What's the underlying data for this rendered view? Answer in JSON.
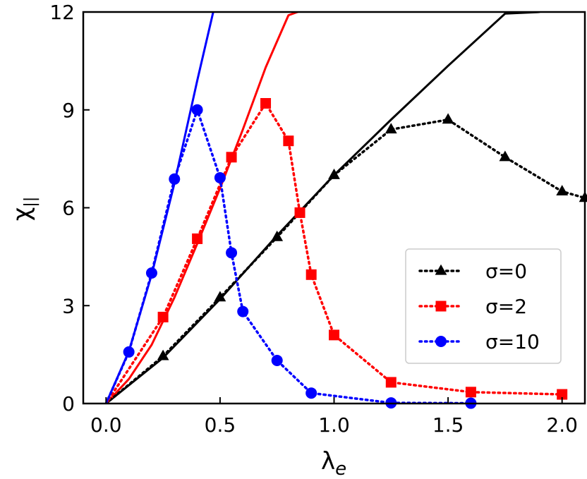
{
  "chart_data": {
    "type": "line",
    "title": "",
    "xlabel": "λ",
    "xlabel_sub": "e",
    "ylabel": "χ",
    "ylabel_sub": "||",
    "xlim": [
      -0.1,
      2.1
    ],
    "ylim": [
      0,
      12
    ],
    "x_ticks": [
      "0.0",
      "0.5",
      "1.0",
      "1.5",
      "2.0"
    ],
    "y_ticks": [
      "0",
      "3",
      "6",
      "9",
      "12"
    ],
    "grid": false,
    "legend_position": "center-right",
    "series": [
      {
        "name": "σ=0",
        "color": "#000000",
        "marker": "triangle",
        "line_style": "dotted",
        "x": [
          0.0,
          0.25,
          0.5,
          0.75,
          1.0,
          1.25,
          1.5,
          1.75,
          2.0,
          2.1
        ],
        "y": [
          0.0,
          1.45,
          3.25,
          5.1,
          7.0,
          8.4,
          8.7,
          7.55,
          6.5,
          6.3
        ]
      },
      {
        "name": "σ=2",
        "color": "#ff0000",
        "marker": "square",
        "line_style": "dotted",
        "x": [
          0.0,
          0.25,
          0.4,
          0.55,
          0.7,
          0.8,
          0.85,
          0.9,
          1.0,
          1.25,
          1.6,
          2.0
        ],
        "y": [
          0.0,
          2.65,
          5.05,
          7.55,
          9.2,
          8.05,
          5.85,
          3.95,
          2.1,
          0.65,
          0.35,
          0.28
        ]
      },
      {
        "name": "σ=10",
        "color": "#0000ff",
        "marker": "circle",
        "line_style": "dotted",
        "x": [
          0.0,
          0.1,
          0.2,
          0.3,
          0.4,
          0.5,
          0.55,
          0.6,
          0.75,
          0.9,
          1.25,
          1.6
        ],
        "y": [
          0.0,
          1.58,
          4.0,
          6.88,
          9.0,
          6.92,
          4.62,
          2.82,
          1.32,
          0.32,
          0.02,
          0.01
        ]
      }
    ],
    "reference_curves": [
      {
        "color": "#000000",
        "x": [
          0.0,
          0.25,
          0.5,
          0.75,
          1.0,
          1.25,
          1.5,
          1.75,
          1.9
        ],
        "y": [
          0.0,
          1.4,
          3.2,
          5.15,
          7.0,
          8.7,
          10.35,
          11.95,
          12.0
        ]
      },
      {
        "color": "#ff0000",
        "x": [
          0.0,
          0.1,
          0.2,
          0.3,
          0.4,
          0.5,
          0.6,
          0.7,
          0.8,
          0.84
        ],
        "y": [
          0.0,
          0.75,
          1.8,
          3.25,
          4.9,
          6.6,
          8.4,
          10.3,
          11.9,
          12.0
        ]
      },
      {
        "color": "#0000ff",
        "x": [
          0.0,
          0.1,
          0.2,
          0.3,
          0.4,
          0.47
        ],
        "y": [
          0.0,
          1.6,
          3.95,
          6.75,
          9.9,
          12.0
        ]
      }
    ]
  }
}
